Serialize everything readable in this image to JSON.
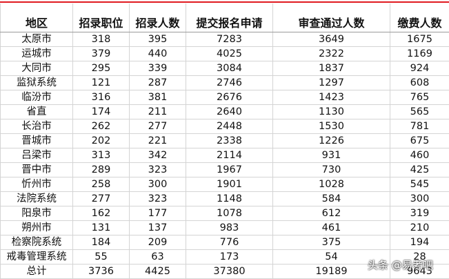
{
  "table": {
    "headers": [
      "地区",
      "招录职位",
      "招录人数",
      "提交报名申请",
      "审查通过人数",
      "缴费人数"
    ],
    "rows": [
      [
        "太原市",
        "318",
        "395",
        "7283",
        "3649",
        "1675"
      ],
      [
        "运城市",
        "379",
        "440",
        "4025",
        "2322",
        "1169"
      ],
      [
        "大同市",
        "295",
        "339",
        "3084",
        "1837",
        "924"
      ],
      [
        "监狱系统",
        "121",
        "287",
        "2746",
        "1297",
        "608"
      ],
      [
        "临汾市",
        "316",
        "381",
        "2676",
        "1423",
        "765"
      ],
      [
        "省直",
        "174",
        "211",
        "2640",
        "1130",
        "565"
      ],
      [
        "长治市",
        "262",
        "277",
        "2448",
        "1530",
        "781"
      ],
      [
        "晋城市",
        "202",
        "221",
        "2338",
        "1226",
        "675"
      ],
      [
        "吕梁市",
        "313",
        "342",
        "2114",
        "931",
        "460"
      ],
      [
        "晋中市",
        "289",
        "323",
        "1967",
        "730",
        "425"
      ],
      [
        "忻州市",
        "258",
        "300",
        "1901",
        "1028",
        "545"
      ],
      [
        "法院系统",
        "277",
        "323",
        "1148",
        "584",
        "300"
      ],
      [
        "阳泉市",
        "162",
        "177",
        "1078",
        "612",
        "319"
      ],
      [
        "朔州市",
        "131",
        "137",
        "983",
        "461",
        "210"
      ],
      [
        "检察院系统",
        "184",
        "209",
        "776",
        "375",
        "194"
      ],
      [
        "戒毒管理系统",
        "55",
        "63",
        "173",
        "54",
        "28"
      ],
      [
        "总计",
        "3736",
        "4425",
        "37380",
        "19189",
        "9643"
      ]
    ]
  },
  "watermark": "头条 @易考吧"
}
